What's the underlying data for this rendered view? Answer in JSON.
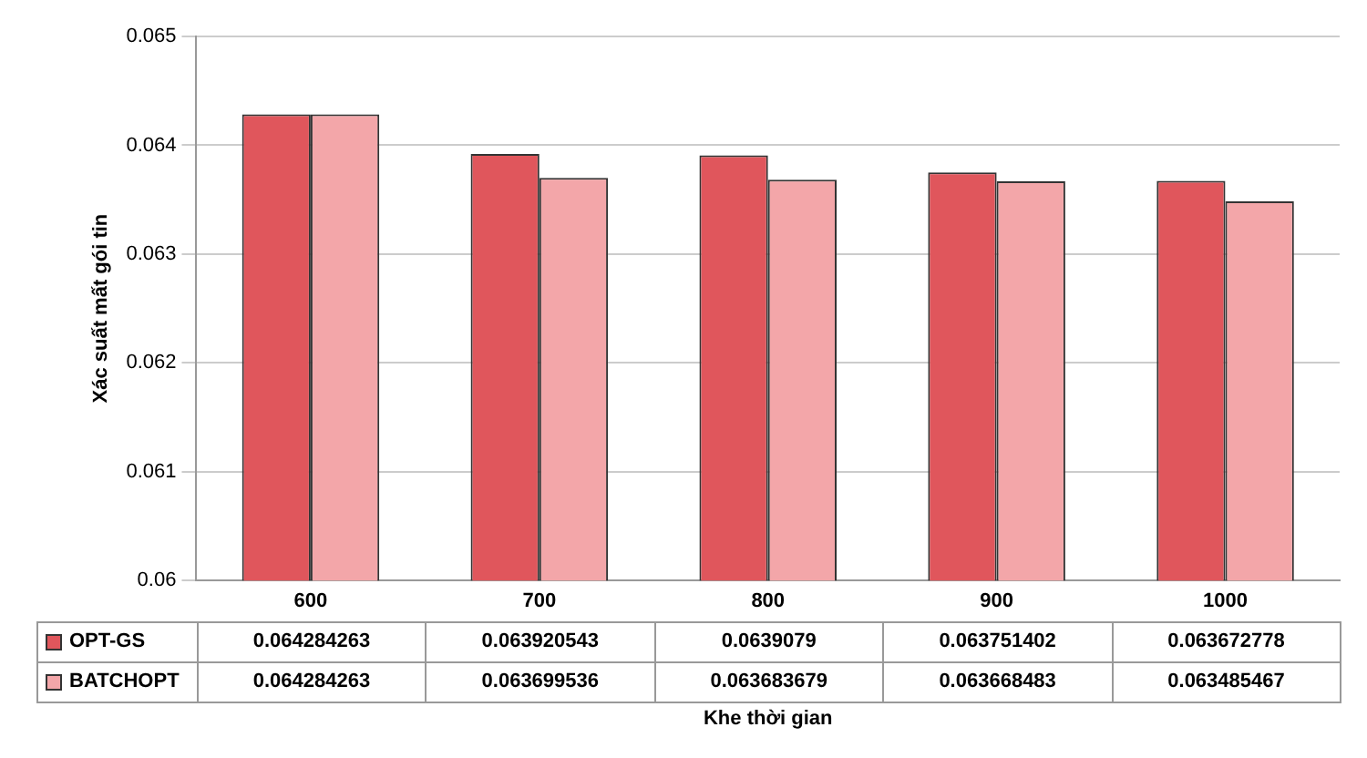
{
  "chart_data": {
    "type": "bar",
    "xlabel": "Khe thời gian",
    "ylabel": "Xác suất mất gói tin",
    "categories": [
      "600",
      "700",
      "800",
      "900",
      "1000"
    ],
    "series": [
      {
        "name": "OPT-GS",
        "color": "#e0565c",
        "values": [
          0.064284263,
          0.063920543,
          0.0639079,
          0.063751402,
          0.063672778
        ]
      },
      {
        "name": "BATCHOPT",
        "color": "#f3a6a9",
        "values": [
          0.064284263,
          0.063699536,
          0.063683679,
          0.063668483,
          0.063485467
        ]
      }
    ],
    "ylim": [
      0.06,
      0.065
    ],
    "yticks": [
      0.06,
      0.061,
      0.062,
      0.063,
      0.064,
      0.065
    ],
    "grid": "y",
    "legend": "bottom",
    "data_labels": true
  }
}
